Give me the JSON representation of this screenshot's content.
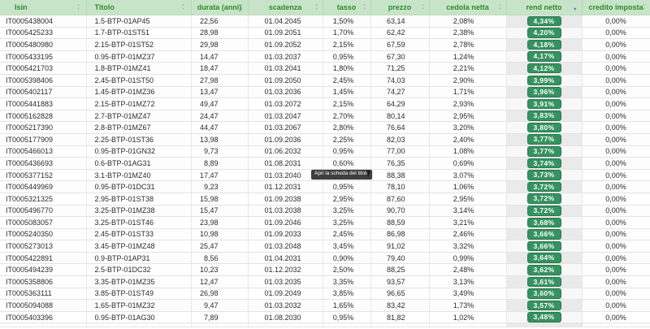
{
  "colors": {
    "header-bg": "#c8e4c8",
    "header-text": "#2d8a2d",
    "badge-bg": "#369260",
    "badge-border": "#2a7a4e",
    "sort-active": "#6a6fd1"
  },
  "tooltip": {
    "text": "Apri la scheda del titolo"
  },
  "table": {
    "sorted_by": "rend",
    "sort_direction": "desc",
    "columns": [
      {
        "key": "isin",
        "label": "Isin"
      },
      {
        "key": "titolo",
        "label": "Titolo"
      },
      {
        "key": "durata",
        "label": "durata (anni)"
      },
      {
        "key": "scadenza",
        "label": "scadenza"
      },
      {
        "key": "tasso",
        "label": "tasso"
      },
      {
        "key": "prezzo",
        "label": "prezzo"
      },
      {
        "key": "cedola",
        "label": "cedola netta"
      },
      {
        "key": "rend",
        "label": "rend netto"
      },
      {
        "key": "credito",
        "label": "credito imposta"
      }
    ],
    "rows": [
      [
        "IT0005438004",
        "1.5-BTP-01AP45",
        "22,56",
        "01.04.2045",
        "1,50%",
        "63,14",
        "2,08%",
        "4,34%",
        "0,00%"
      ],
      [
        "IT0005425233",
        "1.7-BTP-01ST51",
        "28,98",
        "01.09.2051",
        "1,70%",
        "62,42",
        "2,38%",
        "4,20%",
        "0,00%"
      ],
      [
        "IT0005480980",
        "2.15-BTP-01ST52",
        "29,98",
        "01.09.2052",
        "2,15%",
        "67,59",
        "2,78%",
        "4,18%",
        "0,00%"
      ],
      [
        "IT0005433195",
        "0.95-BTP-01MZ37",
        "14,47",
        "01.03.2037",
        "0,95%",
        "67,30",
        "1,24%",
        "4,17%",
        "0,00%"
      ],
      [
        "IT0005421703",
        "1.8-BTP-01MZ41",
        "18,47",
        "01.03.2041",
        "1,80%",
        "71,25",
        "2,21%",
        "4,12%",
        "0,00%"
      ],
      [
        "IT0005398406",
        "2.45-BTP-01ST50",
        "27,98",
        "01.09.2050",
        "2,45%",
        "74,03",
        "2,90%",
        "3,99%",
        "0,00%"
      ],
      [
        "IT0005402117",
        "1.45-BTP-01MZ36",
        "13,47",
        "01.03.2036",
        "1,45%",
        "74,27",
        "1,71%",
        "3,96%",
        "0,00%"
      ],
      [
        "IT0005441883",
        "2.15-BTP-01MZ72",
        "49,47",
        "01.03.2072",
        "2,15%",
        "64,29",
        "2,93%",
        "3,91%",
        "0,00%"
      ],
      [
        "IT0005162828",
        "2.7-BTP-01MZ47",
        "24,47",
        "01.03.2047",
        "2,70%",
        "80,14",
        "2,95%",
        "3,83%",
        "0,00%"
      ],
      [
        "IT0005217390",
        "2.8-BTP-01MZ67",
        "44,47",
        "01.03.2067",
        "2,80%",
        "76,64",
        "3,20%",
        "3,80%",
        "0,00%"
      ],
      [
        "IT0005177909",
        "2.25-BTP-01ST36",
        "13,98",
        "01.09.2036",
        "2,25%",
        "82,03",
        "2,40%",
        "3,77%",
        "0,00%"
      ],
      [
        "IT0005466013",
        "0.95-BTP-01GN32",
        "9,73",
        "01.06.2032",
        "0,95%",
        "77,00",
        "1,08%",
        "3,77%",
        "0,00%"
      ],
      [
        "IT0005436693",
        "0.6-BTP-01AG31",
        "8,89",
        "01.08.2031",
        "0,60%",
        "76,35",
        "0,69%",
        "3,74%",
        "0,00%"
      ],
      [
        "IT0005377152",
        "3.1-BTP-01MZ40",
        "17,47",
        "01.03.2040",
        "",
        "88,38",
        "3,07%",
        "3,73%",
        "0,00%"
      ],
      [
        "IT0005449969",
        "0.95-BTP-01DC31",
        "9,23",
        "01.12.2031",
        "0,95%",
        "78,10",
        "1,06%",
        "3,72%",
        "0,00%"
      ],
      [
        "IT0005321325",
        "2.95-BTP-01ST38",
        "15,98",
        "01.09.2038",
        "2,95%",
        "87,60",
        "2,95%",
        "3,72%",
        "0,00%"
      ],
      [
        "IT0005496770",
        "3.25-BTP-01MZ38",
        "15,47",
        "01.03.2038",
        "3,25%",
        "90,70",
        "3,14%",
        "3,72%",
        "0,00%"
      ],
      [
        "IT0005083057",
        "3.25-BTP-01ST46",
        "23,98",
        "01.09.2046",
        "3,25%",
        "88,59",
        "3,21%",
        "3,68%",
        "0,00%"
      ],
      [
        "IT0005240350",
        "2.45-BTP-01ST33",
        "10,98",
        "01.09.2033",
        "2,45%",
        "86,98",
        "2,46%",
        "3,66%",
        "0,00%"
      ],
      [
        "IT0005273013",
        "3.45-BTP-01MZ48",
        "25,47",
        "01.03.2048",
        "3,45%",
        "91,02",
        "3,32%",
        "3,66%",
        "0,00%"
      ],
      [
        "IT0005422891",
        "0.9-BTP-01AP31",
        "8,56",
        "01.04.2031",
        "0,90%",
        "79,40",
        "0,99%",
        "3,64%",
        "0,00%"
      ],
      [
        "IT0005494239",
        "2.5-BTP-01DC32",
        "10,23",
        "01.12.2032",
        "2,50%",
        "88,25",
        "2,48%",
        "3,62%",
        "0,00%"
      ],
      [
        "IT0005358806",
        "3.35-BTP-01MZ35",
        "12,47",
        "01.03.2035",
        "3,35%",
        "93,57",
        "3,13%",
        "3,61%",
        "0,00%"
      ],
      [
        "IT0005363111",
        "3.85-BTP-01ST49",
        "26,98",
        "01.09.2049",
        "3,85%",
        "96,65",
        "3,49%",
        "3,60%",
        "0,00%"
      ],
      [
        "IT0005094088",
        "1.65-BTP-01MZ32",
        "9,47",
        "01.03.2032",
        "1,65%",
        "83,42",
        "1,73%",
        "3,57%",
        "0,00%"
      ],
      [
        "IT0005403396",
        "0.95-BTP-01AG30",
        "7,89",
        "01.08.2030",
        "0,95%",
        "81,82",
        "1,02%",
        "3,48%",
        "0,00%"
      ]
    ]
  }
}
